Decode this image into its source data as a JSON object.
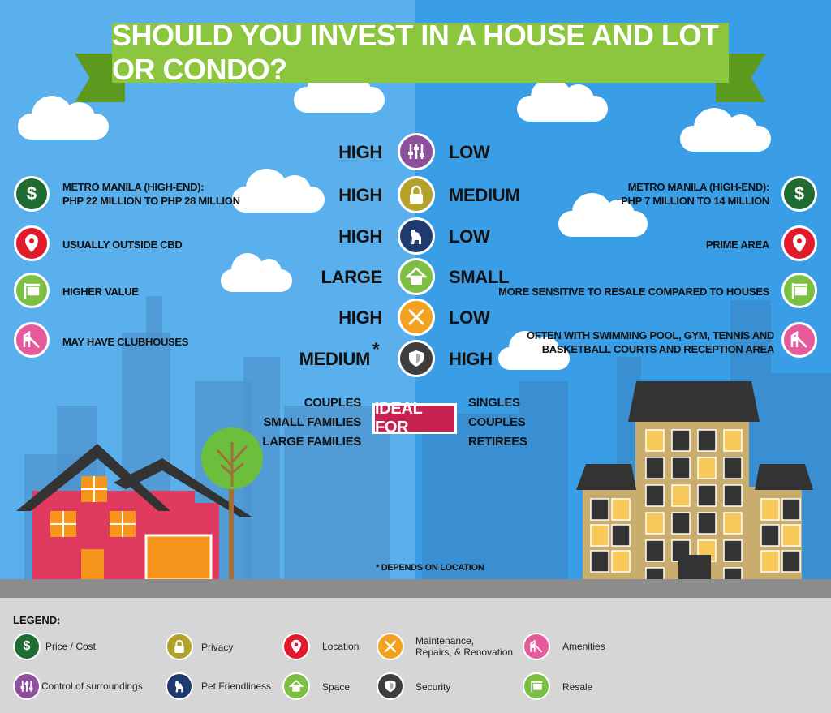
{
  "title": "SHOULD YOU INVEST IN A HOUSE AND LOT OR CONDO?",
  "comparison": [
    {
      "left": "HIGH",
      "icon": "control-of-surroundings-icon",
      "right": "LOW",
      "color": "#8e4f9c"
    },
    {
      "left": "HIGH",
      "icon": "privacy-lock-icon",
      "right": "MEDIUM",
      "color": "#b3a12a"
    },
    {
      "left": "HIGH",
      "icon": "pet-dog-icon",
      "right": "LOW",
      "color": "#1e3a6e"
    },
    {
      "left": "LARGE",
      "icon": "space-house-icon",
      "right": "SMALL",
      "color": "#7cbf42"
    },
    {
      "left": "HIGH",
      "icon": "maintenance-tools-icon",
      "right": "LOW",
      "color": "#f2a21f"
    },
    {
      "left": "MEDIUM",
      "icon": "security-shield-icon",
      "right": "HIGH",
      "color": "#3d3d3d",
      "note": "*"
    }
  ],
  "house": {
    "price": "METRO MANILA (HIGH-END):\nPHP 22 MILLION TO PHP 28 MILLION",
    "location": "USUALLY OUTSIDE CBD",
    "resale": "HIGHER VALUE",
    "amenities": "MAY HAVE CLUBHOUSES",
    "ideal_for": [
      "COUPLES",
      "SMALL FAMILIES",
      "LARGE FAMILIES"
    ]
  },
  "condo": {
    "price": "METRO MANILA (HIGH-END):\nPHP 7 MILLION TO 14 MILLION",
    "location": "PRIME AREA",
    "resale": "MORE SENSITIVE TO RESALE COMPARED TO HOUSES",
    "amenities": "OFTEN WITH SWIMMING POOL, GYM, TENNIS AND\nBASKETBALL COURTS AND RECEPTION AREA",
    "ideal_for": [
      "SINGLES",
      "COUPLES",
      "RETIREES"
    ]
  },
  "ideal_label": "IDEAL FOR",
  "footnote": "* DEPENDS ON LOCATION",
  "legend": {
    "title": "LEGEND:",
    "items": [
      {
        "label": "Price / Cost",
        "icon": "dollar-icon"
      },
      {
        "label": "Privacy",
        "icon": "lock-icon"
      },
      {
        "label": "Location",
        "icon": "location-pin-icon"
      },
      {
        "label": "Maintenance,\nRepairs, & Renovation",
        "icon": "tools-icon"
      },
      {
        "label": "Amenities",
        "icon": "playground-icon"
      },
      {
        "label": "Control of surroundings",
        "icon": "sliders-icon"
      },
      {
        "label": "Pet Friendliness",
        "icon": "dog-icon"
      },
      {
        "label": "Space",
        "icon": "house-icon"
      },
      {
        "label": "Security",
        "icon": "shield-icon"
      },
      {
        "label": "Resale",
        "icon": "for-sale-sign-icon"
      }
    ]
  },
  "colors": {
    "sky_left": "#5ab0ec",
    "sky_right": "#3a9ee6",
    "banner": "#8cc63f",
    "ideal_badge": "#c6214f",
    "house_wall": "#e03a5e",
    "condo_wall": "#c8ad6e"
  }
}
